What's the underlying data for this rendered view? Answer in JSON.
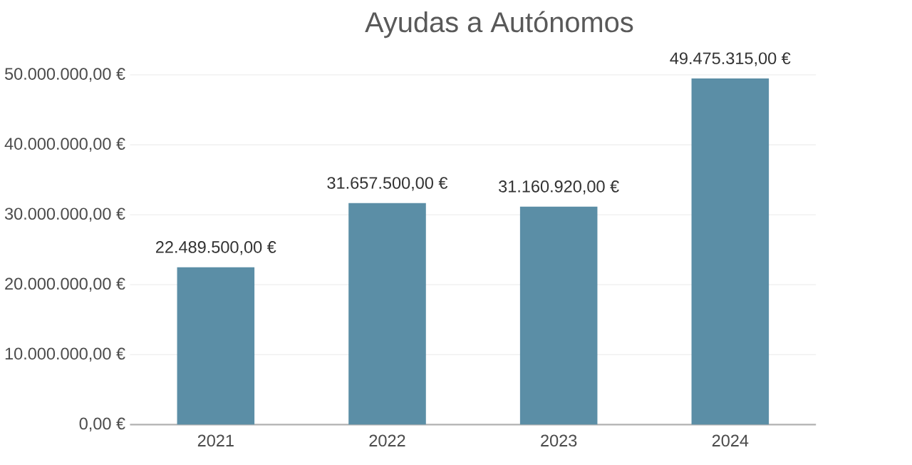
{
  "chart_data": {
    "type": "bar",
    "title": "Ayudas a Autónomos",
    "categories": [
      "2021",
      "2022",
      "2023",
      "2024"
    ],
    "values": [
      22489500,
      31657500,
      31160920,
      49475315
    ],
    "value_labels": [
      "22.489.500,00 €",
      "31.657.500,00 €",
      "31.160.920,00 €",
      "49.475.315,00 €"
    ],
    "color": "#5b8ea6",
    "ylim": [
      0,
      50000000
    ],
    "yticks": [
      {
        "value": 0,
        "label": "0,00 €"
      },
      {
        "value": 10000000,
        "label": "10.000.000,00 €"
      },
      {
        "value": 20000000,
        "label": "20.000.000,00 €"
      },
      {
        "value": 30000000,
        "label": "30.000.000,00 €"
      },
      {
        "value": 40000000,
        "label": "40.000.000,00 €"
      },
      {
        "value": 50000000,
        "label": "50.000.000,00 €"
      }
    ],
    "grid": "y"
  }
}
